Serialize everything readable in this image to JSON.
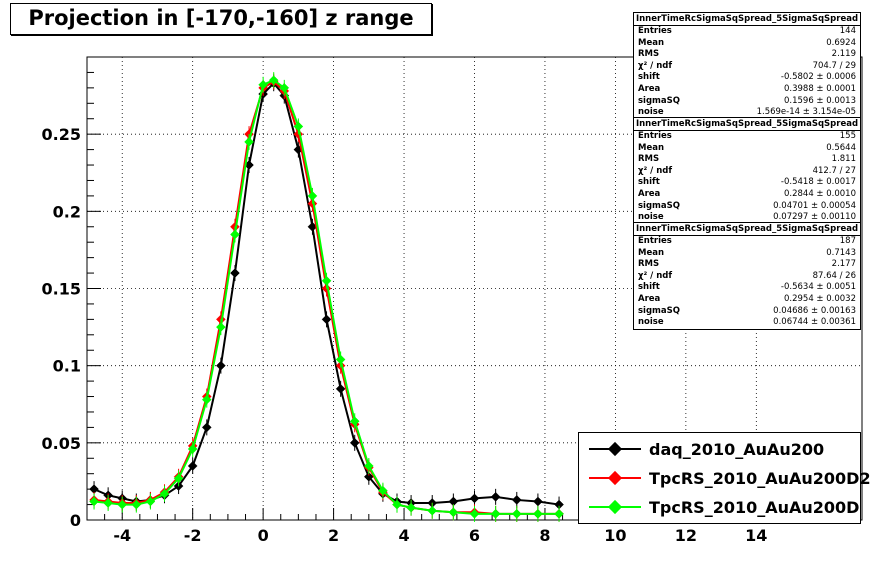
{
  "title": "Projection in [-170,-160] z range",
  "stats": [
    {
      "name": "InnerTimeRcSigmaSqSpread_5SigmaSqSpread",
      "rows": [
        [
          "Entries",
          "144"
        ],
        [
          "Mean",
          "0.6924"
        ],
        [
          "RMS",
          "2.119"
        ],
        [
          "χ² / ndf",
          "704.7 / 29"
        ],
        [
          "shift",
          "-0.5802 ± 0.0006"
        ],
        [
          "Area",
          "0.3988 ± 0.0001"
        ],
        [
          "sigmaSQ",
          "0.1596 ± 0.0013"
        ],
        [
          "noise",
          "1.569e-14 ± 3.154e-05"
        ]
      ]
    },
    {
      "name": "InnerTimeRcSigmaSqSpread_5SigmaSqSpread",
      "rows": [
        [
          "Entries",
          "155"
        ],
        [
          "Mean",
          "0.5644"
        ],
        [
          "RMS",
          "1.811"
        ],
        [
          "χ² / ndf",
          "412.7 / 27"
        ],
        [
          "shift",
          "-0.5418 ± 0.0017"
        ],
        [
          "Area",
          "0.2844 ± 0.0010"
        ],
        [
          "sigmaSQ",
          "0.04701 ± 0.00054"
        ],
        [
          "noise",
          "0.07297 ± 0.00110"
        ]
      ]
    },
    {
      "name": "InnerTimeRcSigmaSqSpread_5SigmaSqSpread",
      "rows": [
        [
          "Entries",
          "187"
        ],
        [
          "Mean",
          "0.7143"
        ],
        [
          "RMS",
          "2.177"
        ],
        [
          "χ² / ndf",
          "87.64 / 26"
        ],
        [
          "shift",
          "-0.5634 ± 0.0051"
        ],
        [
          "Area",
          "0.2954 ± 0.0032"
        ],
        [
          "sigmaSQ",
          "0.04686 ± 0.00163"
        ],
        [
          "noise",
          "0.06744 ± 0.00361"
        ]
      ]
    }
  ],
  "chart_data": {
    "type": "scatter",
    "title": "Projection in [-170,-160] z range",
    "xlim": [
      -5,
      17
    ],
    "ylim": [
      0,
      0.3
    ],
    "xticks": [
      -4,
      -2,
      0,
      2,
      4,
      6,
      8,
      10,
      12,
      14
    ],
    "yticks": [
      0,
      0.05,
      0.1,
      0.15,
      0.2,
      0.25
    ],
    "xtick_labels": [
      "-4",
      "-2",
      "0",
      "2",
      "4",
      "6",
      "8",
      "10",
      "12",
      "14"
    ],
    "ytick_labels": [
      "0",
      "0.05",
      "0.1",
      "0.15",
      "0.2",
      "0.25"
    ],
    "grid": true,
    "legend_position": "bottom-right",
    "series": [
      {
        "name": "daq_2010_AuAu200",
        "color": "#000000",
        "x": [
          -4.8,
          -4.4,
          -4.0,
          -3.6,
          -3.2,
          -2.8,
          -2.4,
          -2.0,
          -1.6,
          -1.2,
          -0.8,
          -0.4,
          0.0,
          0.3,
          0.6,
          1.0,
          1.4,
          1.8,
          2.2,
          2.6,
          3.0,
          3.4,
          3.8,
          4.2,
          4.8,
          5.4,
          6.0,
          6.6,
          7.2,
          7.8,
          8.4
        ],
        "y": [
          0.02,
          0.016,
          0.014,
          0.012,
          0.013,
          0.016,
          0.022,
          0.035,
          0.06,
          0.1,
          0.16,
          0.23,
          0.276,
          0.283,
          0.275,
          0.24,
          0.19,
          0.13,
          0.085,
          0.05,
          0.028,
          0.017,
          0.012,
          0.011,
          0.011,
          0.012,
          0.014,
          0.015,
          0.013,
          0.012,
          0.01
        ]
      },
      {
        "name": "TpcRS_2010_AuAu200D2",
        "color": "#ff0000",
        "x": [
          -4.8,
          -4.4,
          -4.0,
          -3.6,
          -3.2,
          -2.8,
          -2.4,
          -2.0,
          -1.6,
          -1.2,
          -0.8,
          -0.4,
          0.0,
          0.3,
          0.6,
          1.0,
          1.4,
          1.8,
          2.2,
          2.6,
          3.0,
          3.4,
          3.8,
          4.2,
          4.8,
          5.4,
          6.0,
          6.6,
          7.2,
          7.8,
          8.4
        ],
        "y": [
          0.013,
          0.012,
          0.011,
          0.011,
          0.013,
          0.018,
          0.028,
          0.048,
          0.08,
          0.13,
          0.19,
          0.25,
          0.28,
          0.284,
          0.278,
          0.25,
          0.205,
          0.15,
          0.1,
          0.062,
          0.034,
          0.018,
          0.01,
          0.008,
          0.006,
          0.005,
          0.005,
          0.004,
          0.004,
          0.004,
          0.004
        ]
      },
      {
        "name": "TpcRS_2010_AuAu200D",
        "color": "#00ff00",
        "x": [
          -4.8,
          -4.4,
          -4.0,
          -3.6,
          -3.2,
          -2.8,
          -2.4,
          -2.0,
          -1.6,
          -1.2,
          -0.8,
          -0.4,
          0.0,
          0.3,
          0.6,
          1.0,
          1.4,
          1.8,
          2.2,
          2.6,
          3.0,
          3.4,
          3.8,
          4.2,
          4.8,
          5.4,
          6.0,
          6.6,
          7.2,
          7.8,
          8.4
        ],
        "y": [
          0.012,
          0.011,
          0.01,
          0.01,
          0.012,
          0.017,
          0.027,
          0.046,
          0.078,
          0.125,
          0.185,
          0.245,
          0.282,
          0.285,
          0.28,
          0.255,
          0.21,
          0.155,
          0.104,
          0.064,
          0.035,
          0.019,
          0.01,
          0.008,
          0.006,
          0.005,
          0.004,
          0.004,
          0.004,
          0.004,
          0.004
        ]
      }
    ]
  }
}
